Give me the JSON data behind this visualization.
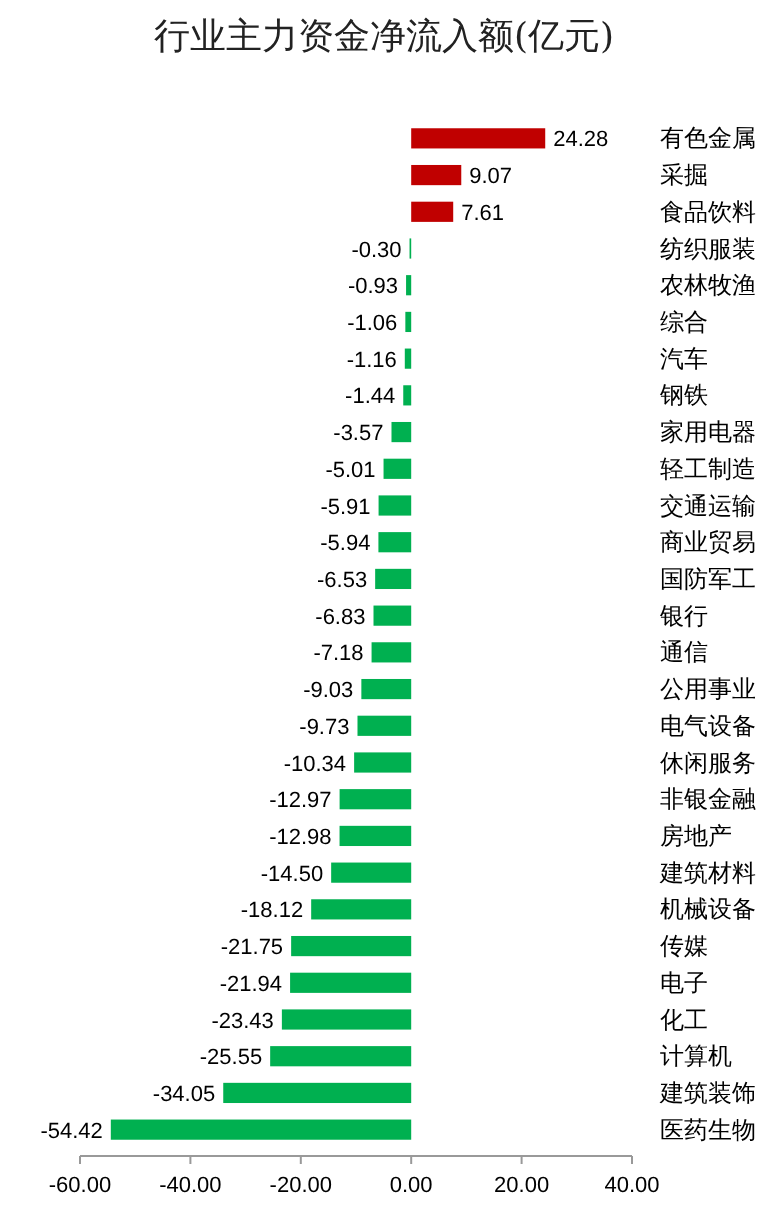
{
  "chart_data": {
    "type": "bar",
    "orientation": "horizontal",
    "title": "行业主力资金净流入额(亿元)",
    "categories": [
      "有色金属",
      "采掘",
      "食品饮料",
      "纺织服装",
      "农林牧渔",
      "综合",
      "汽车",
      "钢铁",
      "家用电器",
      "轻工制造",
      "交通运输",
      "商业贸易",
      "国防军工",
      "银行",
      "通信",
      "公用事业",
      "电气设备",
      "休闲服务",
      "非银金融",
      "房地产",
      "建筑材料",
      "机械设备",
      "传媒",
      "电子",
      "化工",
      "计算机",
      "建筑装饰",
      "医药生物"
    ],
    "values": [
      24.28,
      9.07,
      7.61,
      -0.3,
      -0.93,
      -1.06,
      -1.16,
      -1.44,
      -3.57,
      -5.01,
      -5.91,
      -5.94,
      -6.53,
      -6.83,
      -7.18,
      -9.03,
      -9.73,
      -10.34,
      -12.97,
      -12.98,
      -14.5,
      -18.12,
      -21.75,
      -21.94,
      -23.43,
      -25.55,
      -34.05,
      -54.42
    ],
    "value_labels": [
      "24.28",
      "9.07",
      "7.61",
      "-0.30",
      "-0.93",
      "-1.06",
      "-1.16",
      "-1.44",
      "-3.57",
      "-5.01",
      "-5.91",
      "-5.94",
      "-6.53",
      "-6.83",
      "-7.18",
      "-9.03",
      "-9.73",
      "-10.34",
      "-12.97",
      "-12.98",
      "-14.50",
      "-18.12",
      "-21.75",
      "-21.94",
      "-23.43",
      "-25.55",
      "-34.05",
      "-54.42"
    ],
    "colors": [
      "#c00000",
      "#c00000",
      "#c00000",
      "#00b050",
      "#00b050",
      "#00b050",
      "#00b050",
      "#00b050",
      "#00b050",
      "#00b050",
      "#00b050",
      "#00b050",
      "#00b050",
      "#00b050",
      "#00b050",
      "#00b050",
      "#00b050",
      "#00b050",
      "#00b050",
      "#00b050",
      "#00b050",
      "#00b050",
      "#00b050",
      "#00b050",
      "#00b050",
      "#00b050",
      "#00b050",
      "#00b050"
    ],
    "xlim": [
      -60,
      40
    ],
    "xticks": [
      {
        "value": -60,
        "label": "-60.00"
      },
      {
        "value": -40,
        "label": "-40.00"
      },
      {
        "value": -20,
        "label": "-20.00"
      },
      {
        "value": 0,
        "label": "0.00"
      },
      {
        "value": 20,
        "label": "20.00"
      },
      {
        "value": 40,
        "label": "40.00"
      }
    ]
  }
}
